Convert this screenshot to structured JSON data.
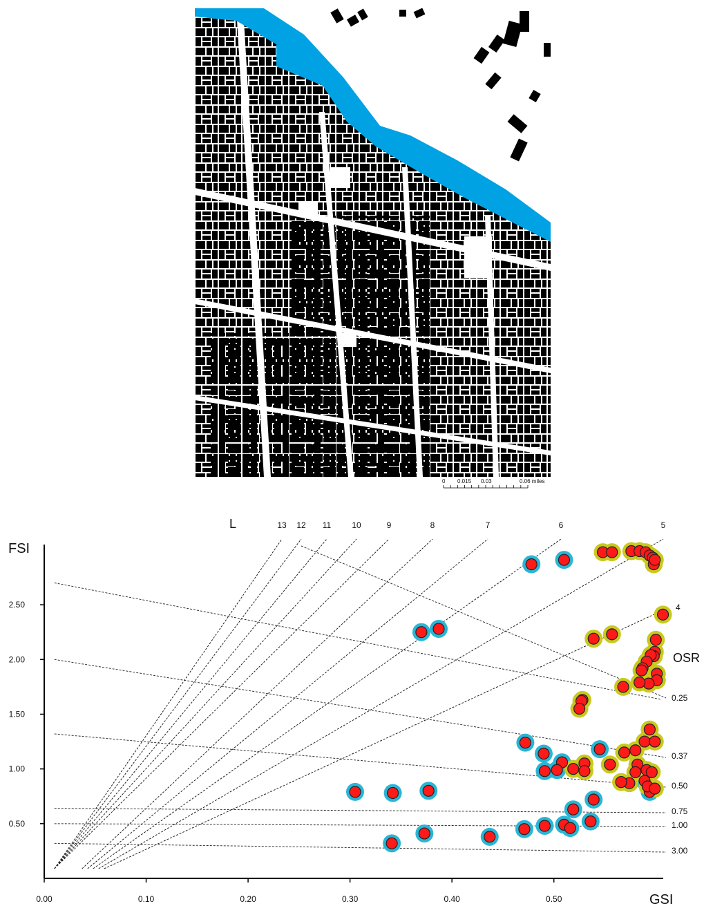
{
  "map": {
    "water_color": "#00a2e3",
    "building_color": "#000000",
    "scale_bar": {
      "ticks": [
        "0",
        "0.015",
        "0.03",
        "0.06 miles"
      ],
      "values": [
        0,
        0.015,
        0.03,
        0.06
      ]
    }
  },
  "chart_data": {
    "type": "scatter",
    "title": "",
    "xlabel": "GSI",
    "ylabel": "FSI",
    "xlim": [
      0,
      0.61
    ],
    "ylim": [
      0,
      3.05
    ],
    "x_ticks": [
      "0.00",
      "0.10",
      "0.20",
      "0.30",
      "0.40",
      "0.50"
    ],
    "y_ticks": [
      "0.50",
      "1.00",
      "1.50",
      "2.00",
      "2.50"
    ],
    "x_tick_values": [
      0,
      0.1,
      0.2,
      0.3,
      0.4,
      0.5
    ],
    "y_tick_values": [
      0.5,
      1.0,
      1.5,
      2.0,
      2.5
    ],
    "grid": false,
    "point_color": "#ff1a1a",
    "halo_colors": {
      "cyan": "#2ab5d6",
      "yellow": "#c9c91e"
    },
    "L_label": "L",
    "L_lines": {
      "labels": [
        "13",
        "12",
        "11",
        "10",
        "9",
        "8",
        "7",
        "6",
        "5",
        "4"
      ],
      "values": [
        13,
        12,
        11,
        10,
        9,
        8,
        7,
        6,
        5,
        4
      ]
    },
    "OSR_label": "OSR",
    "OSR_lines": {
      "labels": [
        "0.25",
        "0.37",
        "0.50",
        "0.75",
        "1.00",
        "3.00"
      ],
      "values": [
        0.25,
        0.37,
        0.5,
        0.75,
        1.0,
        3.0
      ]
    },
    "series": [
      {
        "halo": "cyan",
        "x": [
          0.51,
          0.478,
          0.37,
          0.387,
          0.472,
          0.49,
          0.508,
          0.491,
          0.503,
          0.545,
          0.589,
          0.594,
          0.305,
          0.342,
          0.377,
          0.539,
          0.519,
          0.373,
          0.341,
          0.437,
          0.471,
          0.491,
          0.51,
          0.516,
          0.536
        ],
        "y": [
          2.91,
          2.87,
          2.25,
          2.28,
          1.24,
          1.14,
          1.06,
          0.98,
          0.99,
          1.18,
          0.89,
          0.79,
          0.79,
          0.78,
          0.8,
          0.72,
          0.63,
          0.41,
          0.32,
          0.38,
          0.45,
          0.48,
          0.49,
          0.46,
          0.52
        ]
      },
      {
        "halo": "yellow",
        "x": [
          0.548,
          0.557,
          0.576,
          0.584,
          0.59,
          0.594,
          0.597,
          0.598,
          0.599,
          0.607,
          0.539,
          0.557,
          0.6,
          0.599,
          0.598,
          0.595,
          0.591,
          0.587,
          0.586,
          0.601,
          0.601,
          0.593,
          0.584,
          0.568,
          0.528,
          0.527,
          0.525,
          0.594,
          0.589,
          0.599,
          0.58,
          0.569,
          0.555,
          0.53,
          0.53,
          0.519,
          0.582,
          0.591,
          0.596,
          0.592,
          0.58,
          0.574,
          0.566,
          0.599
        ],
        "y": [
          2.98,
          2.98,
          2.99,
          2.99,
          2.98,
          2.95,
          2.93,
          2.87,
          2.91,
          2.41,
          2.19,
          2.23,
          2.18,
          2.07,
          2.03,
          2.04,
          1.98,
          1.92,
          1.9,
          1.87,
          1.81,
          1.78,
          1.79,
          1.75,
          1.63,
          1.62,
          1.55,
          1.36,
          1.25,
          1.25,
          1.17,
          1.15,
          1.04,
          1.05,
          0.98,
          1.0,
          1.04,
          0.99,
          0.97,
          0.84,
          0.97,
          0.87,
          0.88,
          0.82
        ]
      }
    ]
  }
}
